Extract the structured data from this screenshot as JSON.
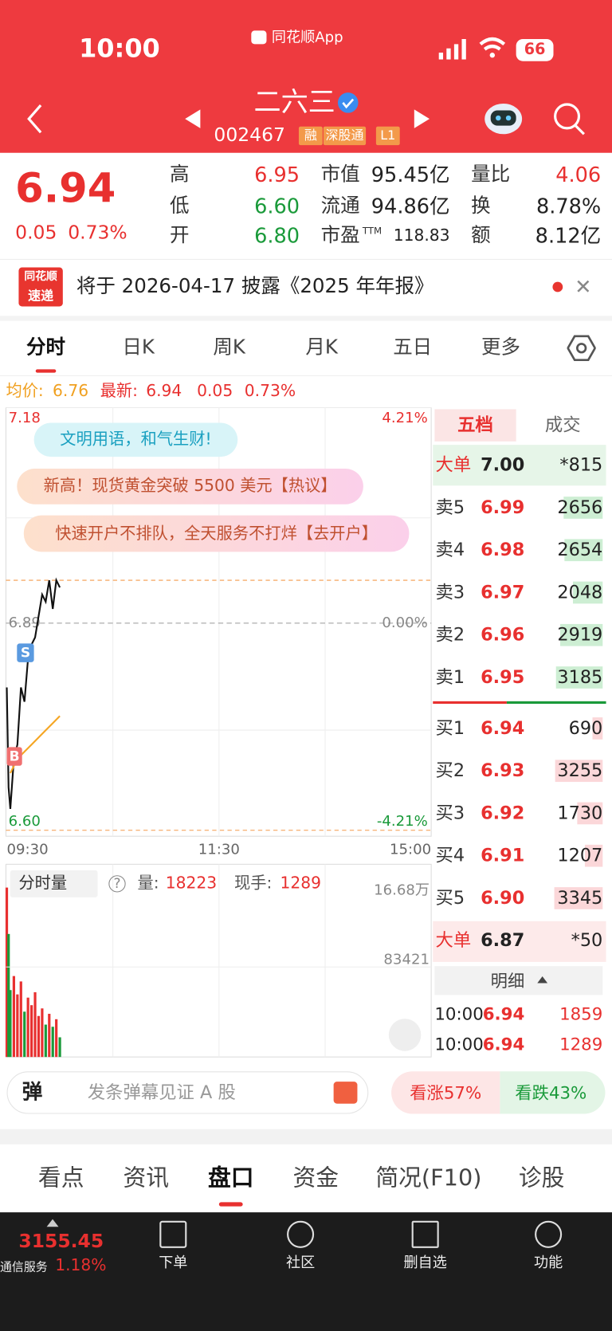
{
  "status_bar": {
    "time": "10:00",
    "app_name": "同花顺App",
    "battery": "66"
  },
  "header": {
    "title": "二六三",
    "code": "002467",
    "tags": [
      "融",
      "深股通",
      "L1"
    ]
  },
  "quote": {
    "price": "6.94",
    "change": "0.05",
    "change_pct": "0.73%",
    "stats": [
      [
        "高",
        "6.95"
      ],
      [
        "低",
        "6.60"
      ],
      [
        "开",
        "6.80"
      ],
      [
        "市值",
        "95.45亿"
      ],
      [
        "流通",
        "94.86亿"
      ],
      [
        "市盈",
        "118.83"
      ],
      [
        "量比",
        "4.06"
      ],
      [
        "换",
        "8.78%"
      ],
      [
        "额",
        "8.12亿"
      ]
    ],
    "pe_suffix": "TTM"
  },
  "notice": {
    "badge_top": "同花顺",
    "badge_bottom": "速递",
    "text": "将于 2026-04-17 披露《2025 年年报》"
  },
  "chart_tabs": [
    "分时",
    "日K",
    "周K",
    "月K",
    "五日",
    "更多"
  ],
  "summary": {
    "avg_label": "均价:",
    "avg": "6.76",
    "last_label": "最新:",
    "last": "6.94",
    "change": "0.05",
    "change_pct": "0.73%"
  },
  "bubbles": [
    "文明用语，和气生财!",
    "新高！现货黄金突破 5500 美元【热议】",
    "快速开户不排队，全天服务不打烊【去开户】"
  ],
  "markers": [
    "S",
    "B"
  ],
  "chart_data": {
    "type": "line",
    "x": [
      0,
      1,
      2,
      4,
      6,
      8,
      10,
      12,
      14,
      16,
      18,
      20,
      22,
      24,
      26,
      28,
      30
    ],
    "price": [
      6.8,
      6.66,
      6.63,
      6.7,
      6.72,
      6.8,
      6.78,
      6.84,
      6.86,
      6.87,
      6.9,
      6.93,
      6.92,
      6.95,
      6.91,
      6.95,
      6.94
    ],
    "avg_x": [
      2,
      6,
      10,
      14,
      18,
      22,
      26,
      30
    ],
    "avg": [
      6.68,
      6.7,
      6.71,
      6.72,
      6.73,
      6.74,
      6.75,
      6.76
    ],
    "volume": [
      157000,
      114000,
      62000,
      75000,
      58000,
      70000,
      42000,
      55000,
      48000,
      60000,
      38000,
      45000,
      30000,
      40000,
      28000,
      35000,
      18223
    ],
    "price_color": "#111111",
    "avg_color": "#f5a623",
    "up_color": "#e83030",
    "down_color": "#1a9a3a",
    "xlim": [
      0,
      240
    ],
    "xticks": [
      {
        "value": 0,
        "label": "09:30"
      },
      {
        "value": 120,
        "label": "11:30"
      },
      {
        "value": 240,
        "label": "15:00"
      }
    ],
    "ylim": [
      6.6,
      7.18
    ],
    "yticks": [
      7.18,
      6.89,
      {
        "value": 6.6,
        "label": "6.60"
      }
    ],
    "y2lim": [
      -4.21,
      4.21
    ],
    "y2ticks": [
      {
        "value": 4.21,
        "label": "4.21%"
      },
      {
        "value": 0,
        "label": "0.00%"
      },
      {
        "value": -4.21,
        "label": "-4.21%"
      }
    ],
    "ref_lines": [
      6.95,
      6.6
    ],
    "vlim": [
      0,
      166800
    ],
    "vticks": [
      {
        "value": 166800,
        "label": "16.68万"
      },
      83421
    ]
  },
  "volume_panel": {
    "selector": "分时量",
    "help": "?",
    "vol_label": "量:",
    "vol": "18223",
    "hand_label": "现手:",
    "hand": "1289"
  },
  "order_book": {
    "tabs": [
      "五档",
      "成交"
    ],
    "big_sell": [
      "大单",
      "7.00",
      "*815"
    ],
    "asks": [
      [
        "卖5",
        "6.99",
        2656
      ],
      [
        "卖4",
        "6.98",
        2654
      ],
      [
        "卖3",
        "6.97",
        2048
      ],
      [
        "卖2",
        "6.96",
        2919
      ],
      [
        "卖1",
        "6.95",
        3185
      ]
    ],
    "bids": [
      [
        "买1",
        "6.94",
        690
      ],
      [
        "买2",
        "6.93",
        3255
      ],
      [
        "买3",
        "6.92",
        1730
      ],
      [
        "买4",
        "6.91",
        1207
      ],
      [
        "买5",
        "6.90",
        3345
      ]
    ],
    "big_buy": [
      "大单",
      "6.87",
      "*50"
    ],
    "detail": "明细",
    "trades": [
      [
        "10:00",
        "6.94",
        "1859"
      ],
      [
        "10:00",
        "6.94",
        "1289"
      ]
    ]
  },
  "danmu": {
    "icon": "弹",
    "placeholder": "发条弹幕见证 A 股",
    "up": "看涨57%",
    "down": "看跌43%"
  },
  "bottom_tabs": [
    "看点",
    "资讯",
    "盘口",
    "资金",
    "简况(F10)",
    "诊股"
  ],
  "footer": {
    "index": "3155.45",
    "sector": "通信服务",
    "sector_change": "1.18%",
    "actions": [
      "下单",
      "社区",
      "删自选",
      "功能"
    ]
  }
}
